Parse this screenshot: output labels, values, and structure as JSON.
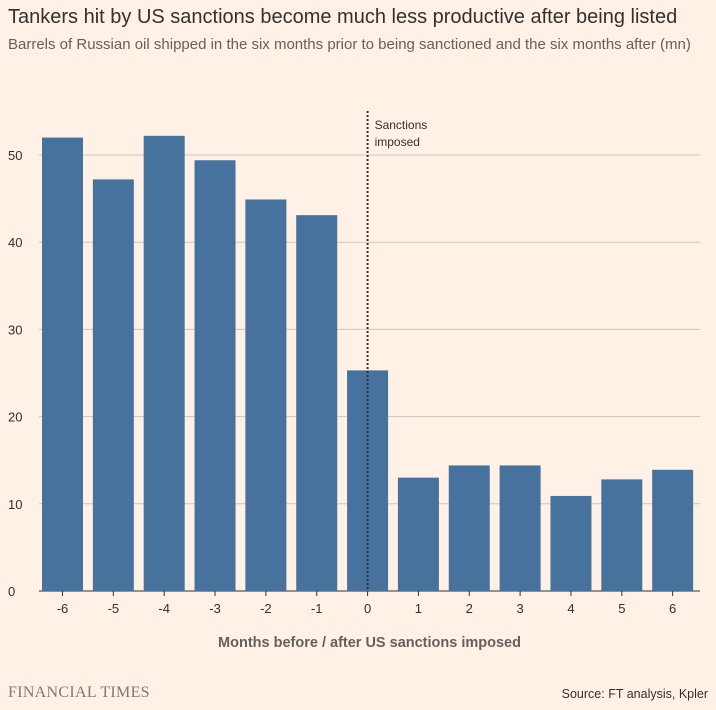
{
  "header": {
    "title": "Tankers hit by US sanctions become much less productive after being listed",
    "subtitle": "Barrels of Russian oil shipped in the six months prior to being sanctioned and the six months after (mn)"
  },
  "footer": {
    "publisher": "FINANCIAL TIMES",
    "source": "Source: FT analysis, Kpler"
  },
  "colors": {
    "background": "#FFF1E5",
    "bar": "#48729E",
    "grid": "#CEC6B9",
    "text": "#33302E",
    "axis_label": "#66605C",
    "marker": "#33302E"
  },
  "chart_data": {
    "type": "bar",
    "title": "Tankers hit by US sanctions become much less productive after being listed",
    "subtitle": "Barrels of Russian oil shipped in the six months prior to being sanctioned and the six months after (mn)",
    "xlabel": "Months before / after US sanctions imposed",
    "ylabel": "",
    "categories": [
      "-6",
      "-5",
      "-4",
      "-3",
      "-2",
      "-1",
      "0",
      "1",
      "2",
      "3",
      "4",
      "5",
      "6"
    ],
    "values": [
      52.0,
      47.2,
      52.2,
      49.4,
      44.9,
      43.1,
      25.3,
      13.0,
      14.4,
      14.4,
      10.9,
      12.8,
      13.9
    ],
    "ylim": [
      0,
      55
    ],
    "yticks": [
      0,
      10,
      20,
      30,
      40,
      50
    ],
    "grid": true,
    "annotation": {
      "x": "0",
      "label_line1": "Sanctions",
      "label_line2": "imposed"
    }
  }
}
